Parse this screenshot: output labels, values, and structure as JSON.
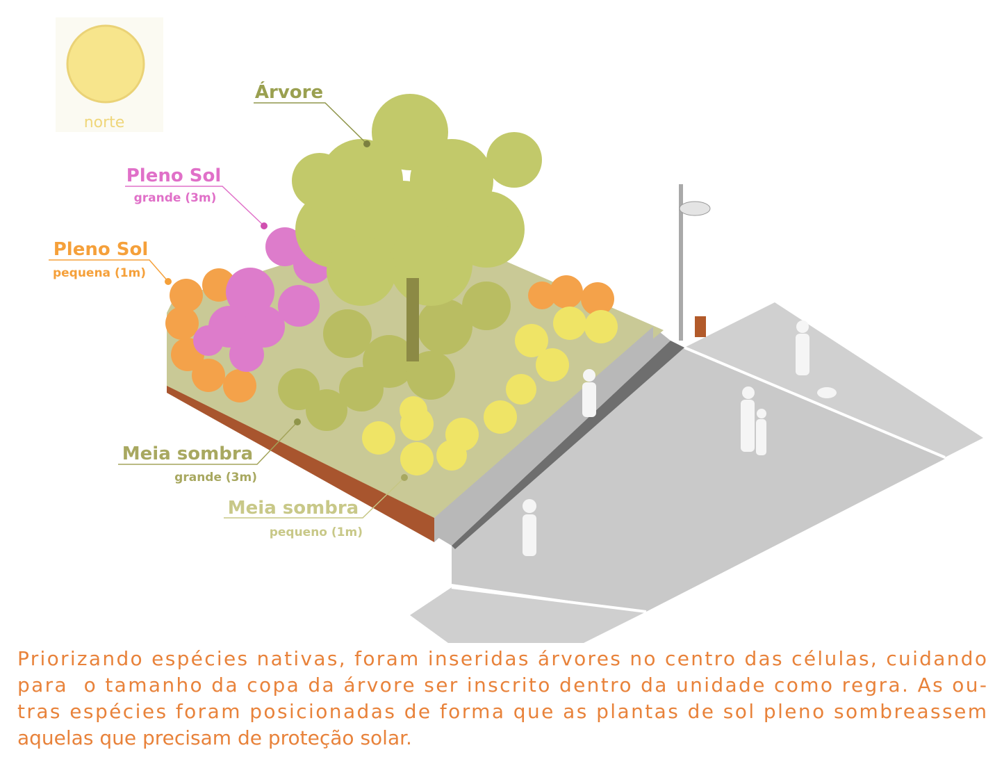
{
  "sun": {
    "label": "norte"
  },
  "labels": [
    {
      "title": "Árvore"
    },
    {
      "title": "Pleno Sol",
      "subtitle": "grande (3m)"
    },
    {
      "title": "Pleno Sol",
      "subtitle": "pequena (1m)"
    },
    {
      "title": "Meia sombra",
      "subtitle": "grande (3m)"
    },
    {
      "title": "Meia sombra",
      "subtitle": "pequeno (1m)"
    }
  ],
  "caption": {
    "lines": [
      "Priorizando espécies nativas, foram inseridas árvores no centro das células, cuidando",
      "para  o tamanho da copa da árvore ser inscrito dentro da unidade como regra. As ou-",
      "tras espécies foram posicionadas de forma que as plantas de sol pleno sombreassem",
      "aquelas que precisam de proteção solar."
    ]
  }
}
